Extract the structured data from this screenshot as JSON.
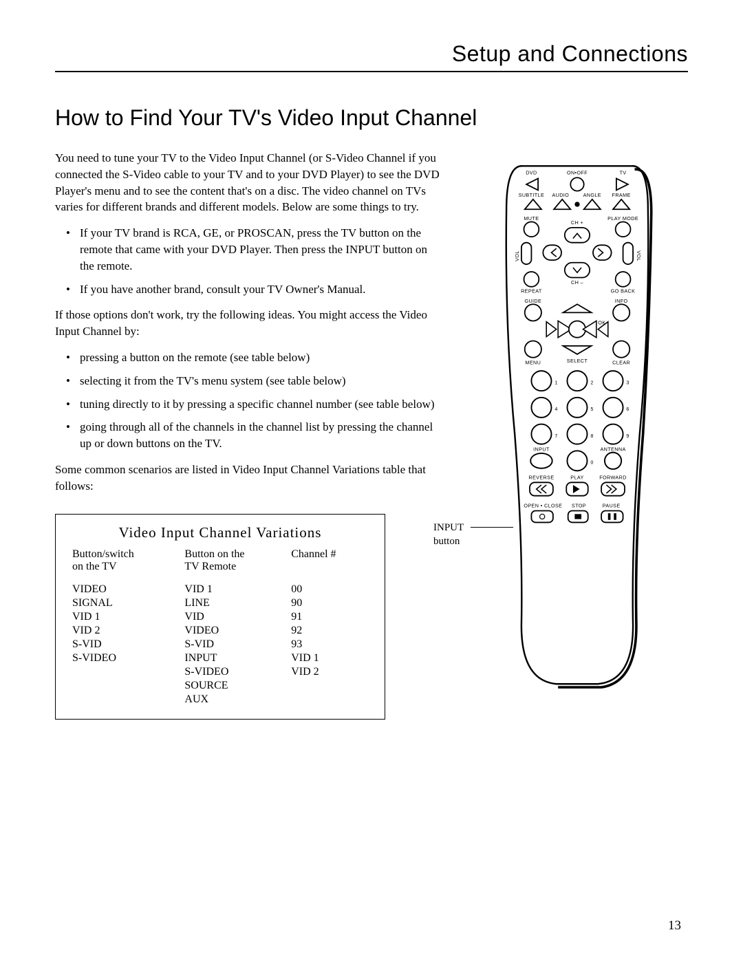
{
  "header": {
    "section_title": "Setup and Connections"
  },
  "page": {
    "title": "How to Find Your TV's Video Input Channel",
    "intro": "You need to tune your TV to the Video Input Channel (or S-Video Channel if you connected the S-Video cable to your TV and to your DVD Player) to see the DVD Player's menu and to see the content that's on a disc. The video channel on TVs varies for different brands and different models. Below are some things to try.",
    "bullets1": [
      "If your TV brand is RCA, GE, or PROSCAN, press the TV button on the remote that came with your DVD Player. Then press the INPUT button on the remote.",
      "If you have another brand, consult your TV Owner's Manual."
    ],
    "mid": "If those options don't work, try the following ideas. You might access the Video Input Channel by:",
    "bullets2": [
      "pressing a button on the remote (see table below)",
      "selecting it from the TV's menu system (see table below)",
      "tuning directly to it by pressing a specific channel number (see table below)",
      "going through all of the channels in the channel list by pressing the channel up or down buttons on the TV."
    ],
    "outro": "Some common scenarios are listed in Video Input Channel Variations table that follows:"
  },
  "table": {
    "title": "Video Input Channel Variations",
    "headers": {
      "c1a": "Button/switch",
      "c1b": "on the TV",
      "c2a": "Button on the",
      "c2b": "TV Remote",
      "c3": "Channel #"
    },
    "rows": [
      {
        "c1": "VIDEO",
        "c2": "VID 1",
        "c3": "00"
      },
      {
        "c1": "SIGNAL",
        "c2": "LINE",
        "c3": "90"
      },
      {
        "c1": "VID 1",
        "c2": "VID",
        "c3": "91"
      },
      {
        "c1": "VID 2",
        "c2": "VIDEO",
        "c3": "92"
      },
      {
        "c1": "S-VID",
        "c2": "S-VID",
        "c3": "93"
      },
      {
        "c1": "S-VIDEO",
        "c2": "INPUT",
        "c3": "VID 1"
      },
      {
        "c1": "",
        "c2": "S-VIDEO",
        "c3": "VID 2"
      },
      {
        "c1": "",
        "c2": "SOURCE",
        "c3": ""
      },
      {
        "c1": "",
        "c2": "AUX",
        "c3": ""
      }
    ]
  },
  "callout": {
    "line1": "INPUT",
    "line2": "button"
  },
  "remote": {
    "labels": {
      "dvd": "DVD",
      "onoff": "ON•OFF",
      "tv": "TV",
      "subtitle": "SUBTITLE",
      "audio": "AUDIO",
      "angle": "ANGLE",
      "frame": "FRAME",
      "mute": "MUTE",
      "playmode": "PLAY MODE",
      "chplus": "CH +",
      "chminus": "CH –",
      "vol_l": "VOL",
      "vol_r": "VOL",
      "repeat": "REPEAT",
      "goback": "GO BACK",
      "guide": "GUIDE",
      "info": "INFO",
      "ok": "OK",
      "select": "SELECT",
      "menu": "MENU",
      "clear": "CLEAR",
      "n1": "1",
      "n2": "2",
      "n3": "3",
      "n4": "4",
      "n5": "5",
      "n6": "6",
      "n7": "7",
      "n8": "8",
      "n9": "9",
      "n0": "0",
      "input": "INPUT",
      "antenna": "ANTENNA",
      "reverse": "REVERSE",
      "play": "PLAY",
      "forward": "FORWARD",
      "openclose": "OPEN • CLOSE",
      "stop": "STOP",
      "pause": "PAUSE"
    }
  },
  "pagenum": "13"
}
